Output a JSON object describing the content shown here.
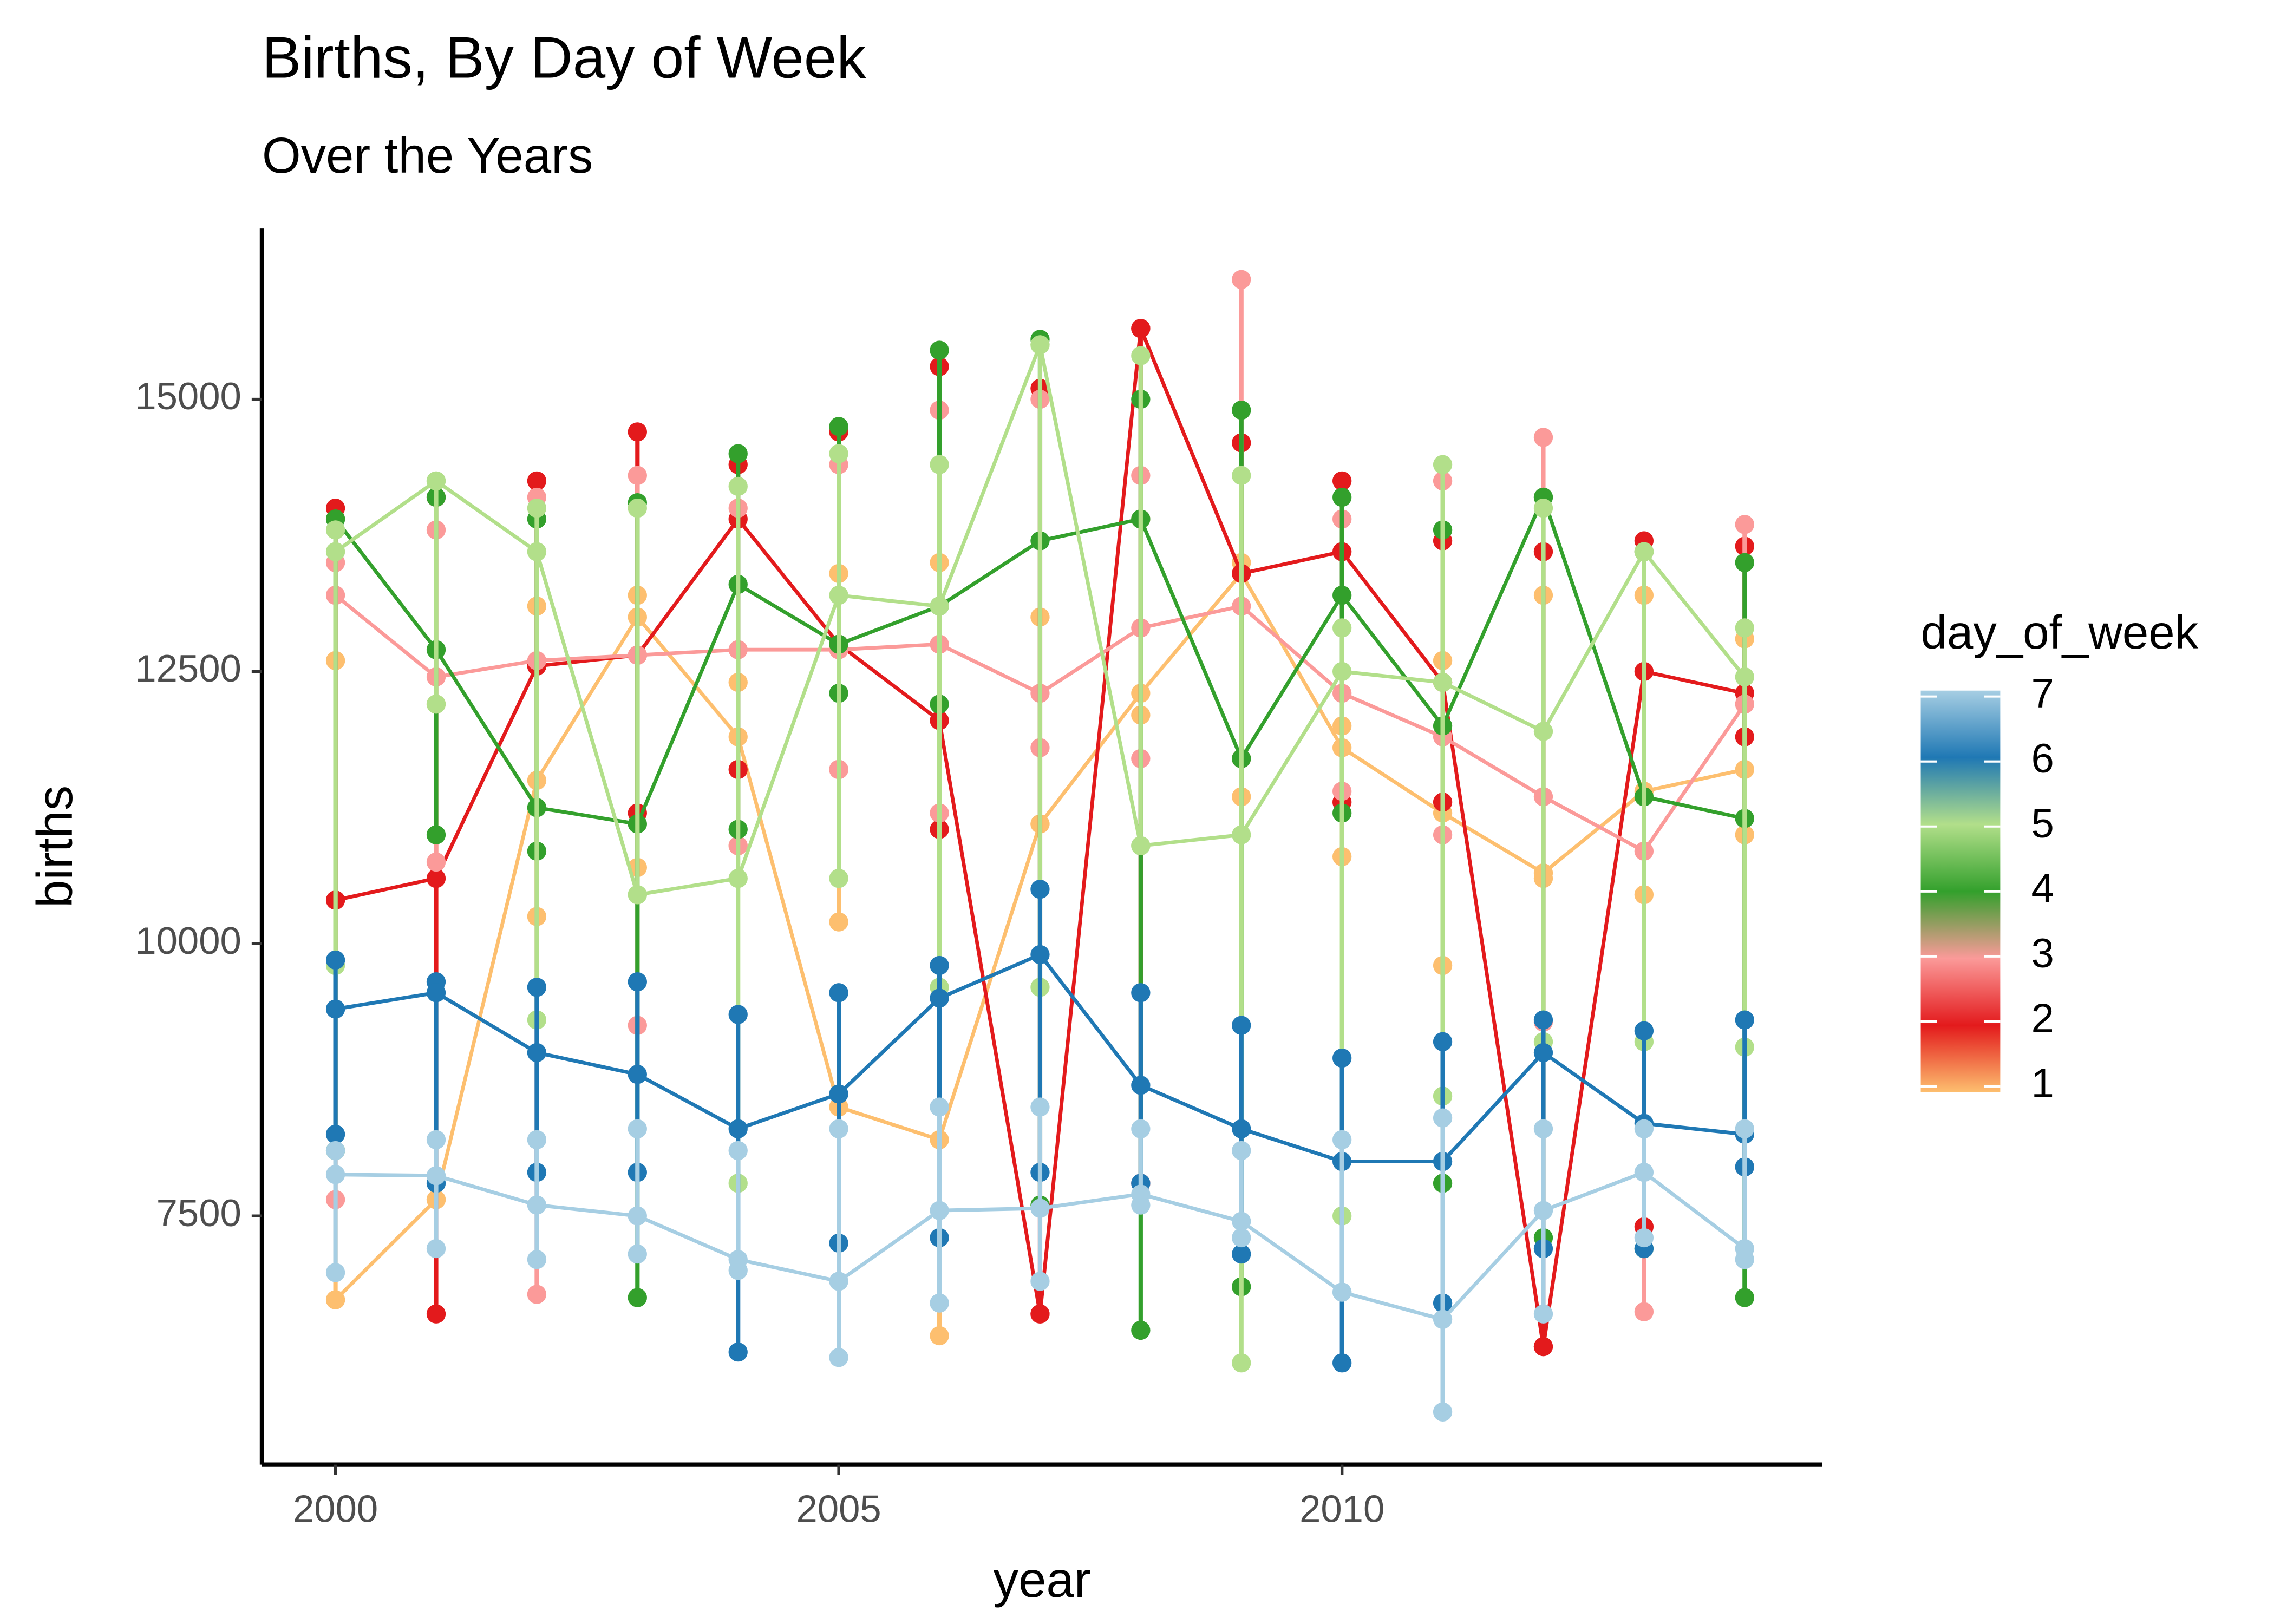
{
  "chart_data": {
    "type": "line",
    "title": "Births, By Day of Week",
    "subtitle": "Over the Years",
    "x_label": "year",
    "y_label": "births",
    "legend_title": "day_of_week",
    "legend_position": "right",
    "xlim": [
      1999.27,
      2014.77
    ],
    "xticks": [
      2000,
      2005,
      2010
    ],
    "ylim": [
      5216,
      16568
    ],
    "yticks": [
      7500,
      10000,
      12500,
      15000
    ],
    "grid": false,
    "x": [
      2000,
      2001,
      2002,
      2003,
      2004,
      2005,
      2006,
      2007,
      2008,
      2009,
      2010,
      2011,
      2012,
      2013,
      2014
    ],
    "series": [
      {
        "name": "1",
        "color": "#FDBF6F",
        "values": [
          6730,
          7650,
          11500,
          13000,
          11900,
          8500,
          8200,
          11100,
          12300,
          13400,
          11800,
          11200,
          10650,
          11400,
          11600
        ],
        "low": [
          6730,
          7650,
          10250,
          10700,
          10900,
          10200,
          6400,
          11100,
          12100,
          11350,
          10800,
          9800,
          10600,
          10450,
          11000
        ],
        "high": [
          12600,
          12200,
          13100,
          13200,
          12400,
          13400,
          13500,
          13000,
          13900,
          13500,
          12000,
          12600,
          13200,
          13200,
          12800
        ]
      },
      {
        "name": "2",
        "color": "#E31A1C",
        "values": [
          10400,
          10600,
          12550,
          12650,
          13900,
          12750,
          12050,
          6600,
          15650,
          13400,
          13600,
          12400,
          6300,
          12500,
          12300
        ],
        "low": [
          10400,
          6600,
          12550,
          11200,
          11600,
          11600,
          11050,
          6600,
          7800,
          11700,
          11300,
          11300,
          6300,
          7400,
          11900
        ],
        "high": [
          14000,
          14100,
          14250,
          14700,
          14400,
          14700,
          15300,
          15100,
          15650,
          14600,
          14250,
          13700,
          13600,
          13700,
          13650
        ]
      },
      {
        "name": "3",
        "color": "#FB9A99",
        "values": [
          13200,
          12450,
          12600,
          12650,
          12700,
          12700,
          12750,
          12300,
          12900,
          13100,
          12300,
          11900,
          11350,
          10850,
          12200
        ],
        "low": [
          7650,
          10750,
          6780,
          9250,
          10900,
          11600,
          11200,
          11800,
          11700,
          11700,
          11400,
          11000,
          9280,
          6620,
          7950
        ],
        "high": [
          13500,
          13800,
          14100,
          14300,
          14000,
          14400,
          14900,
          15000,
          14300,
          16100,
          13900,
          14250,
          14650,
          13600,
          13850
        ]
      },
      {
        "name": "4",
        "color": "#33A02C",
        "values": [
          13900,
          12700,
          11250,
          11100,
          13300,
          12750,
          13100,
          13700,
          13900,
          11700,
          13200,
          12000,
          14100,
          11350,
          11150
        ],
        "low": [
          8100,
          11000,
          10850,
          6750,
          11050,
          12300,
          12200,
          7600,
          6450,
          6850,
          11200,
          7800,
          7300,
          7200,
          6750
        ],
        "high": [
          13900,
          14100,
          13900,
          14050,
          14500,
          14750,
          15450,
          15550,
          15000,
          14900,
          14100,
          13800,
          14100,
          13600,
          13500
        ]
      },
      {
        "name": "5",
        "color": "#B2DF8A",
        "values": [
          13600,
          14250,
          13600,
          10450,
          10600,
          13200,
          13100,
          15500,
          10900,
          11000,
          12500,
          12400,
          11950,
          13600,
          12450
        ],
        "low": [
          9800,
          12200,
          9300,
          10450,
          7800,
          10600,
          9600,
          9600,
          10900,
          6150,
          7500,
          8600,
          9100,
          9100,
          9050
        ],
        "high": [
          13800,
          14250,
          14000,
          14000,
          14200,
          14500,
          14400,
          15500,
          15400,
          14300,
          12900,
          14400,
          14000,
          13600,
          12900
        ]
      },
      {
        "name": "6",
        "color": "#1F78B4",
        "values": [
          9400,
          9550,
          9000,
          8800,
          8300,
          8620,
          9500,
          9900,
          8700,
          8300,
          8000,
          8000,
          9000,
          8350,
          8250
        ],
        "low": [
          8250,
          7800,
          7900,
          7900,
          6250,
          7250,
          7300,
          7900,
          7800,
          7150,
          6150,
          6700,
          7200,
          7200,
          7950
        ],
        "high": [
          9850,
          9650,
          9600,
          9650,
          9350,
          9550,
          9800,
          10500,
          9550,
          9250,
          8950,
          9100,
          9300,
          9200,
          9300
        ]
      },
      {
        "name": "7",
        "color": "#A6CEE3",
        "values": [
          7880,
          7870,
          7600,
          7500,
          7100,
          6900,
          7550,
          7570,
          7700,
          7450,
          6800,
          6550,
          7550,
          7900,
          7200
        ],
        "low": [
          6980,
          7200,
          7100,
          7150,
          7000,
          6200,
          6700,
          6900,
          7600,
          7300,
          6800,
          5700,
          6600,
          7300,
          7100
        ],
        "high": [
          8100,
          8200,
          8200,
          8300,
          8100,
          8300,
          8500,
          8500,
          8300,
          8100,
          8200,
          8400,
          8300,
          8300,
          8300
        ]
      }
    ]
  }
}
